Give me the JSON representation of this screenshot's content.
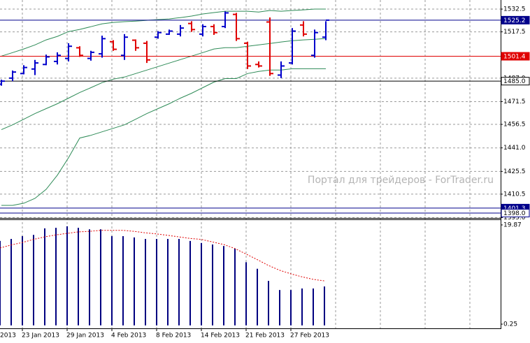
{
  "chart_data": [
    {
      "type": "ohlc",
      "categories": [
        null,
        null,
        "23 Jan 2013",
        null,
        null,
        null,
        "29 Jan 2013",
        null,
        null,
        null,
        "4 Feb 2013",
        null,
        null,
        null,
        "8 Feb 2013",
        null,
        null,
        null,
        "14 Feb 2013",
        null,
        null,
        null,
        "21 Feb 2013",
        null,
        null,
        null,
        "27 Feb 2013",
        null,
        null,
        null
      ],
      "left_edge_date": "2013",
      "open": [
        1483,
        1487,
        1490,
        1493,
        1496,
        1498,
        1500,
        1507,
        1500,
        1503,
        1511,
        1502,
        1512,
        1510,
        1514,
        1516,
        1516,
        1523,
        1516,
        1521,
        1521,
        1529,
        1510,
        1496,
        1524,
        1489,
        1497,
        1522,
        1502,
        1514
      ],
      "high": [
        1486,
        1492,
        1495.5,
        1499,
        1502.5,
        1504,
        1510,
        1508,
        1505,
        1515,
        1512,
        1516,
        1512.5,
        1511.5,
        1518,
        1519,
        1522,
        1524.5,
        1522.5,
        1522.5,
        1531,
        1530,
        1511,
        1498,
        1527,
        1498,
        1520,
        1524.5,
        1519,
        1524.5
      ],
      "low": [
        1482,
        1485,
        1489.5,
        1489,
        1495.5,
        1496,
        1498,
        1501,
        1498.5,
        1500.5,
        1505,
        1499,
        1505,
        1497,
        1513,
        1515.5,
        1514.5,
        1517.5,
        1514.5,
        1515.5,
        1520,
        1511.5,
        1493,
        1494,
        1488.5,
        1487,
        1496,
        1514.5,
        1500.5,
        1512
      ],
      "close": [
        1485,
        1491,
        1494,
        1497,
        1501,
        1502,
        1508,
        1502,
        1504,
        1513,
        1506,
        1514,
        1507,
        1499,
        1517,
        1518,
        1520,
        1519,
        1521,
        1517,
        1530,
        1513,
        1495,
        1495,
        1490,
        1495,
        1518,
        1516,
        1517,
        1525.2
      ],
      "up_color": "#0000cc",
      "down_color": "#e00000",
      "bands": [
        {
          "color": "#2e8b57",
          "values": [
            1501.5,
            1503.8,
            1506.2,
            1508.9,
            1512.2,
            1514.5,
            1517.7,
            1519.1,
            1520.9,
            1522.8,
            1523.7,
            1524.2,
            1524.6,
            1525.1,
            1525.6,
            1526,
            1526.9,
            1527.9,
            1529.3,
            1530.2,
            1531.1,
            1531.1,
            1531.1,
            1530.6,
            1531.6,
            1531.1,
            1531.6,
            1532,
            1532.5,
            1532.5
          ]
        },
        {
          "color": "#2e8b57",
          "values": [
            1453,
            1456.2,
            1459.9,
            1463.6,
            1466.9,
            1470.1,
            1473.8,
            1477.5,
            1480.7,
            1484,
            1486.3,
            1487.7,
            1490,
            1492.3,
            1494.6,
            1496.9,
            1499.2,
            1501.5,
            1503.8,
            1506.2,
            1507.1,
            1507.1,
            1508,
            1508.9,
            1509.8,
            1510.8,
            1511.7,
            1512.2,
            1512.6,
            1513.1
          ]
        },
        {
          "color": "#2e8b57",
          "values": [
            1403.1,
            1403.1,
            1404.5,
            1407.7,
            1413.7,
            1423,
            1434.5,
            1447.5,
            1449.3,
            1451.6,
            1453.9,
            1456.2,
            1459.9,
            1463.6,
            1466.9,
            1470.1,
            1473.8,
            1477,
            1480.7,
            1484.4,
            1486.7,
            1486.7,
            1490,
            1491.4,
            1492.3,
            1492.3,
            1493.2,
            1493.2,
            1493.2,
            1493.2
          ]
        }
      ],
      "ylim": [
        1394.8,
        1538.5
      ],
      "yticks": [
        1532.5,
        1517.5,
        {
          "value": 1487,
          "label": "1487.0"
        },
        1471.5,
        1456.5,
        {
          "value": 1441,
          "label": "1441.0"
        },
        1425.5,
        1410.5,
        {
          "value": 1395,
          "label": "1395.0"
        }
      ],
      "grid": true,
      "levels": [
        {
          "value": 1525.2,
          "color": "#00008b",
          "filled": true
        },
        {
          "value": 1501.4,
          "color": "#e00000",
          "filled": true
        },
        {
          "value": 1485,
          "label": "1485.0",
          "color": "#000000",
          "filled": false
        },
        {
          "value": 1401.3,
          "color": "#00008b",
          "filled": true
        },
        {
          "value": 1398,
          "label": "1398.0",
          "color": "#00008b",
          "filled": false
        }
      ],
      "watermark": "Портал для трейдеров - ForTrader.ru"
    },
    {
      "type": "bar",
      "values": [
        16.7,
        17.1,
        17.65,
        17.9,
        19.2,
        19.3,
        19.6,
        19.3,
        19,
        19,
        17.65,
        17.65,
        17.4,
        17.1,
        17.1,
        17.1,
        17.1,
        16.7,
        16.3,
        16,
        15.7,
        15.2,
        12.5,
        11.2,
        8.8,
        7,
        7,
        7.3,
        7.3,
        7.7
      ],
      "color": "#000080",
      "signal": {
        "color": "#e00000",
        "values": [
          15.3,
          15.9,
          16.4,
          17,
          17.5,
          17.9,
          18.2,
          18.5,
          18.6,
          18.8,
          18.8,
          18.8,
          18.6,
          18.3,
          18.1,
          17.8,
          17.5,
          17.2,
          17,
          16.5,
          16,
          15.2,
          14.1,
          13,
          11.85,
          10.9,
          10.2,
          9.6,
          9.1,
          8.8
        ]
      },
      "ylim": [
        -0.58,
        20.97
      ],
      "yticks": [
        19.87,
        0.25
      ]
    }
  ]
}
